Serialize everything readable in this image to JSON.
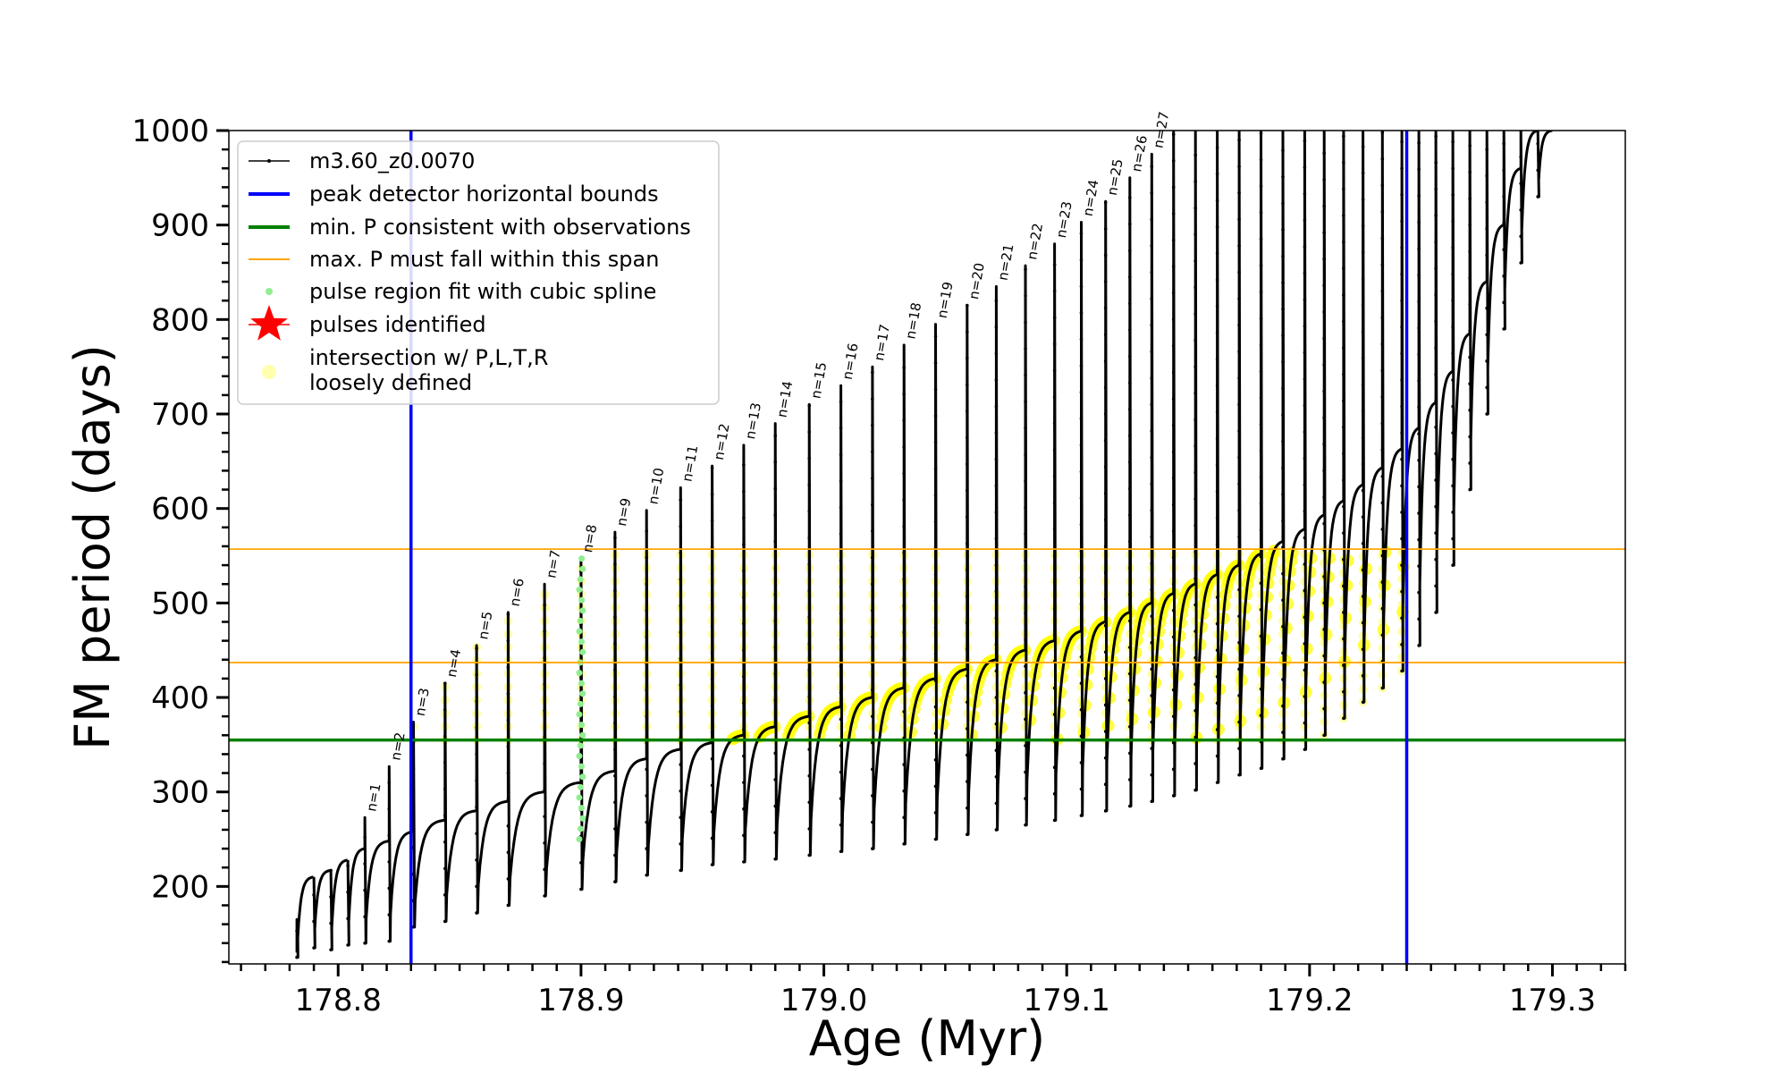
{
  "chart_data": {
    "type": "line",
    "xlabel": "Age (Myr)",
    "ylabel": "FM period (days)",
    "xlim": [
      178.755,
      179.33
    ],
    "ylim": [
      118,
      1000
    ],
    "x_ticks": [
      178.8,
      178.9,
      179.0,
      179.1,
      179.2,
      179.3
    ],
    "x_tick_labels": [
      "178.8",
      "178.9",
      "179.0",
      "179.1",
      "179.2",
      "179.3"
    ],
    "y_ticks": [
      200,
      300,
      400,
      500,
      600,
      700,
      800,
      900,
      1000
    ],
    "y_tick_labels": [
      "200",
      "300",
      "400",
      "500",
      "600",
      "700",
      "800",
      "900",
      "1000"
    ],
    "grid": false,
    "legend_position": "upper-left",
    "legend": [
      {
        "label": "m3.60_z0.0070",
        "marker": "line-dot",
        "color": "#000000"
      },
      {
        "label": "peak detector horizontal bounds",
        "marker": "line",
        "color": "#0000ff"
      },
      {
        "label": "min. P consistent with observations",
        "marker": "line",
        "color": "#008000"
      },
      {
        "label": "max. P must fall within this span",
        "marker": "thin-line",
        "color": "#ffa500"
      },
      {
        "label": "pulse region fit with cubic spline",
        "marker": "dot",
        "color": "#90ee90"
      },
      {
        "label": "pulses identified",
        "marker": "star",
        "color": "#ff0000"
      },
      {
        "label": "intersection w/ P,L,T,R",
        "label2": "loosely defined",
        "marker": "circle",
        "color": "#ffff99"
      }
    ],
    "vertical_lines": [
      {
        "x": 178.83,
        "color": "#0000ff",
        "name": "peak detector horizontal bounds"
      },
      {
        "x": 179.24,
        "color": "#0000ff",
        "name": "peak detector horizontal bounds"
      }
    ],
    "horizontal_lines": [
      {
        "y": 355,
        "color": "#008000",
        "name": "min. P consistent with observations"
      },
      {
        "y": 437,
        "color": "#ffa500",
        "name": "max. P span lower"
      },
      {
        "y": 557,
        "color": "#ffa500",
        "name": "max. P span upper"
      }
    ],
    "series": [
      {
        "name": "m3.60_z0.0070",
        "description": "thermal pulses; each pulse: period drops from pre value to trough, spikes to peak, then recovers",
        "pulses": [
          {
            "x": 178.783,
            "pre": 130,
            "trough": 125,
            "peak": 165
          },
          {
            "x": 178.79,
            "pre": 210,
            "trough": 135,
            "peak": 210
          },
          {
            "x": 178.797,
            "pre": 217,
            "trough": 133,
            "peak": 217
          },
          {
            "x": 178.804,
            "pre": 228,
            "trough": 138,
            "peak": 228
          },
          {
            "x": 178.811,
            "pre": 240,
            "trough": 140,
            "peak": 273,
            "label": "n=1"
          },
          {
            "x": 178.821,
            "pre": 248,
            "trough": 142,
            "peak": 327,
            "label": "n=2"
          },
          {
            "x": 178.831,
            "pre": 258,
            "trough": 157,
            "peak": 374,
            "label": "n=3"
          },
          {
            "x": 178.844,
            "pre": 270,
            "trough": 163,
            "peak": 415,
            "label": "n=4"
          },
          {
            "x": 178.857,
            "pre": 280,
            "trough": 172,
            "peak": 455,
            "label": "n=5"
          },
          {
            "x": 178.87,
            "pre": 290,
            "trough": 180,
            "peak": 490,
            "label": "n=6"
          },
          {
            "x": 178.885,
            "pre": 300,
            "trough": 190,
            "peak": 520,
            "label": "n=7"
          },
          {
            "x": 178.9,
            "pre": 310,
            "trough": 197,
            "peak": 547,
            "label": "n=8"
          },
          {
            "x": 178.914,
            "pre": 322,
            "trough": 205,
            "peak": 575,
            "label": "n=9"
          },
          {
            "x": 178.927,
            "pre": 335,
            "trough": 212,
            "peak": 598,
            "label": "n=10"
          },
          {
            "x": 178.941,
            "pre": 345,
            "trough": 217,
            "peak": 622,
            "label": "n=11"
          },
          {
            "x": 178.954,
            "pre": 352,
            "trough": 223,
            "peak": 645,
            "label": "n=12"
          },
          {
            "x": 178.967,
            "pre": 360,
            "trough": 226,
            "peak": 667,
            "label": "n=13"
          },
          {
            "x": 178.98,
            "pre": 369,
            "trough": 229,
            "peak": 690,
            "label": "n=14"
          },
          {
            "x": 178.994,
            "pre": 380,
            "trough": 233,
            "peak": 710,
            "label": "n=15"
          },
          {
            "x": 179.007,
            "pre": 390,
            "trough": 237,
            "peak": 730,
            "label": "n=16"
          },
          {
            "x": 179.02,
            "pre": 400,
            "trough": 240,
            "peak": 750,
            "label": "n=17"
          },
          {
            "x": 179.033,
            "pre": 410,
            "trough": 245,
            "peak": 773,
            "label": "n=18"
          },
          {
            "x": 179.046,
            "pre": 420,
            "trough": 250,
            "peak": 795,
            "label": "n=19"
          },
          {
            "x": 179.059,
            "pre": 430,
            "trough": 255,
            "peak": 815,
            "label": "n=20"
          },
          {
            "x": 179.071,
            "pre": 440,
            "trough": 260,
            "peak": 835,
            "label": "n=21"
          },
          {
            "x": 179.083,
            "pre": 450,
            "trough": 265,
            "peak": 857,
            "label": "n=22"
          },
          {
            "x": 179.095,
            "pre": 460,
            "trough": 270,
            "peak": 880,
            "label": "n=23"
          },
          {
            "x": 179.106,
            "pre": 470,
            "trough": 275,
            "peak": 903,
            "label": "n=24"
          },
          {
            "x": 179.116,
            "pre": 480,
            "trough": 280,
            "peak": 925,
            "label": "n=25"
          },
          {
            "x": 179.126,
            "pre": 490,
            "trough": 285,
            "peak": 950,
            "label": "n=26"
          },
          {
            "x": 179.135,
            "pre": 500,
            "trough": 290,
            "peak": 975,
            "label": "n=27"
          },
          {
            "x": 179.144,
            "pre": 510,
            "trough": 296,
            "peak": 1000
          },
          {
            "x": 179.153,
            "pre": 520,
            "trough": 302,
            "peak": 1000
          },
          {
            "x": 179.162,
            "pre": 530,
            "trough": 310,
            "peak": 1000
          },
          {
            "x": 179.171,
            "pre": 540,
            "trough": 318,
            "peak": 1000
          },
          {
            "x": 179.18,
            "pre": 552,
            "trough": 325,
            "peak": 1000
          },
          {
            "x": 179.189,
            "pre": 565,
            "trough": 335,
            "peak": 1000
          },
          {
            "x": 179.198,
            "pre": 578,
            "trough": 345,
            "peak": 1000
          },
          {
            "x": 179.206,
            "pre": 593,
            "trough": 360,
            "peak": 1000
          },
          {
            "x": 179.214,
            "pre": 608,
            "trough": 378,
            "peak": 1000
          },
          {
            "x": 179.222,
            "pre": 625,
            "trough": 395,
            "peak": 1000
          },
          {
            "x": 179.23,
            "pre": 643,
            "trough": 410,
            "peak": 1000
          },
          {
            "x": 179.238,
            "pre": 663,
            "trough": 428,
            "peak": 1000
          },
          {
            "x": 179.245,
            "pre": 685,
            "trough": 455,
            "peak": 1000
          },
          {
            "x": 179.252,
            "pre": 712,
            "trough": 490,
            "peak": 1000
          },
          {
            "x": 179.259,
            "pre": 745,
            "trough": 540,
            "peak": 1000
          },
          {
            "x": 179.266,
            "pre": 785,
            "trough": 620,
            "peak": 1000
          },
          {
            "x": 179.273,
            "pre": 840,
            "trough": 700,
            "peak": 1000
          },
          {
            "x": 179.28,
            "pre": 900,
            "trough": 790,
            "peak": 1000
          },
          {
            "x": 179.287,
            "pre": 960,
            "trough": 860,
            "peak": 1000
          },
          {
            "x": 179.294,
            "pre": 1000,
            "trough": 930,
            "peak": 1000
          }
        ]
      },
      {
        "name": "intersection w/ P,L,T,R loosely defined",
        "description": "points where period lies between min. P and max. P span",
        "y_range": [
          355,
          557
        ],
        "x_range": [
          178.83,
          179.24
        ]
      },
      {
        "name": "pulse region fit with cubic spline",
        "description": "spline fit around pulse n=8",
        "x": 178.9,
        "y_range": [
          250,
          547
        ]
      }
    ]
  }
}
